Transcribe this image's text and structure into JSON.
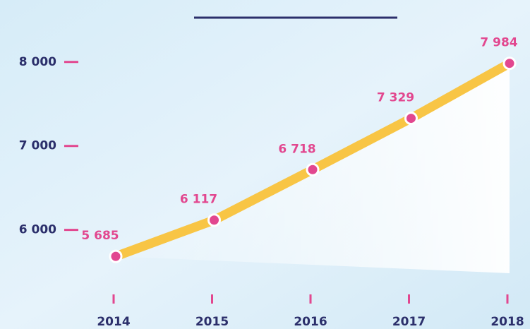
{
  "chart_data": {
    "type": "line",
    "categories": [
      "2014",
      "2015",
      "2016",
      "2017",
      "2018"
    ],
    "values": [
      5685,
      6117,
      6718,
      7329,
      7984
    ],
    "value_labels": [
      "5 685",
      "6 117",
      "6 718",
      "7 329",
      "7 984"
    ],
    "color": "#f8c545",
    "marker_color": "#e2478f",
    "ylim": [
      5400,
      8200
    ],
    "yticks": [
      {
        "value": 6000,
        "label": "6 000"
      },
      {
        "value": 7000,
        "label": "7 000"
      },
      {
        "value": 8000,
        "label": "8 000"
      }
    ]
  }
}
